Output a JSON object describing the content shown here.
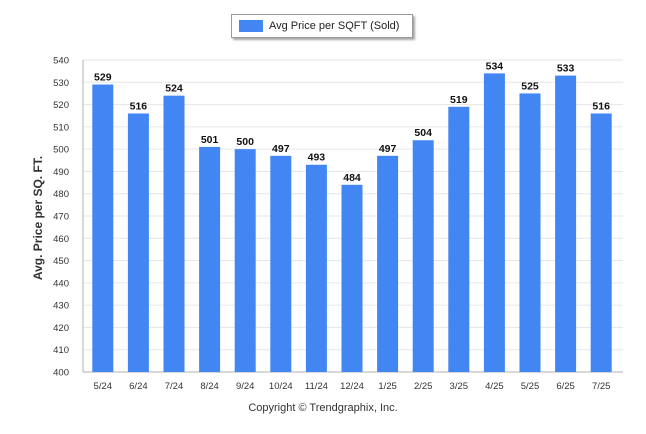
{
  "legend": {
    "label": "Avg Price per SQFT (Sold)"
  },
  "footer": {
    "copyright": "Copyright © Trendgraphix, Inc."
  },
  "colors": {
    "bar": "#4286f4",
    "grid": "#e6e6e6",
    "axis": "#b0b0b0"
  },
  "chart_data": {
    "type": "bar",
    "title": "",
    "xlabel": "",
    "ylabel": "Avg. Price per SQ. FT.",
    "categories": [
      "5/24",
      "6/24",
      "7/24",
      "8/24",
      "9/24",
      "10/24",
      "11/24",
      "12/24",
      "1/25",
      "2/25",
      "3/25",
      "4/25",
      "5/25",
      "6/25",
      "7/25"
    ],
    "series": [
      {
        "name": "Avg Price per SQFT (Sold)",
        "values": [
          529,
          516,
          524,
          501,
          500,
          497,
          493,
          484,
          497,
          504,
          519,
          534,
          525,
          533,
          516
        ]
      }
    ],
    "ylim": [
      400,
      540
    ],
    "yticks": [
      400,
      410,
      420,
      430,
      440,
      450,
      460,
      470,
      480,
      490,
      500,
      510,
      520,
      530,
      540
    ],
    "grid": true,
    "data_labels": true,
    "legend_position": "top-center"
  }
}
